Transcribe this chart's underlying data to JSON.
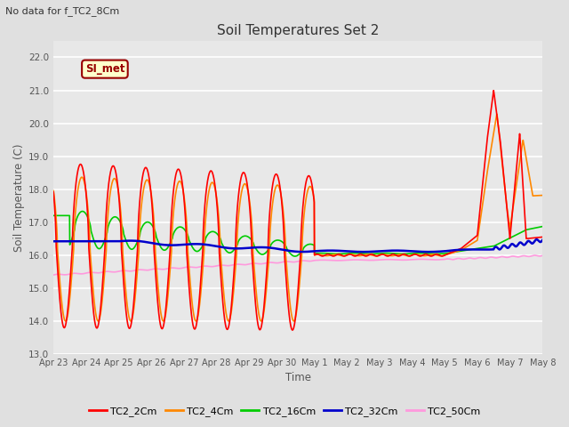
{
  "title": "Soil Temperatures Set 2",
  "subtitle": "No data for f_TC2_8Cm",
  "xlabel": "Time",
  "ylabel": "Soil Temperature (C)",
  "ylim": [
    13.0,
    22.5
  ],
  "yticks": [
    13.0,
    14.0,
    15.0,
    16.0,
    17.0,
    18.0,
    19.0,
    20.0,
    21.0,
    22.0
  ],
  "bg_color": "#e0e0e0",
  "plot_bg_color": "#e8e8e8",
  "legend_label": "SI_met",
  "legend_bg": "#ffffcc",
  "legend_border": "#990000",
  "series_colors": {
    "TC2_2Cm": "#ff0000",
    "TC2_4Cm": "#ff8800",
    "TC2_16Cm": "#00cc00",
    "TC2_32Cm": "#0000cc",
    "TC2_50Cm": "#ff99dd"
  },
  "series_linewidths": {
    "TC2_2Cm": 1.2,
    "TC2_4Cm": 1.2,
    "TC2_16Cm": 1.2,
    "TC2_32Cm": 1.8,
    "TC2_50Cm": 1.2
  },
  "xtick_labels": [
    "Apr 23",
    "Apr 24",
    "Apr 25",
    "Apr 26",
    "Apr 27",
    "Apr 28",
    "Apr 29",
    "Apr 30",
    "May 1",
    "May 2",
    "May 3",
    "May 4",
    "May 5",
    "May 6",
    "May 7",
    "May 8"
  ],
  "grid_color": "#ffffff",
  "tick_color": "#555555",
  "label_color": "#555555"
}
